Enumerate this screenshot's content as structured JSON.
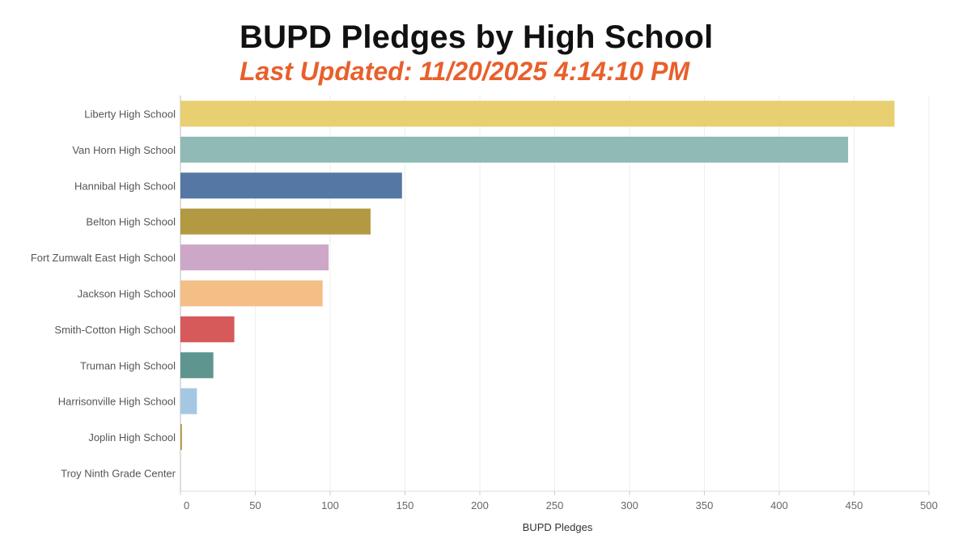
{
  "title": "BUPD Pledges by High School",
  "subtitle": "Last Updated: 11/20/2025 4:14:10 PM",
  "chart_data": {
    "type": "bar",
    "orientation": "horizontal",
    "title": "BUPD Pledges by High School",
    "subtitle": "Last Updated: 11/20/2025 4:14:10 PM",
    "xlabel": "BUPD Pledges",
    "ylabel": "",
    "xlim": [
      0,
      500
    ],
    "xticks": [
      0,
      50,
      100,
      150,
      200,
      250,
      300,
      350,
      400,
      450,
      500
    ],
    "grid": true,
    "categories": [
      "Liberty High School",
      "Van Horn High School",
      "Hannibal High School",
      "Belton High School",
      "Fort Zumwalt East High School",
      "Jackson High School",
      "Smith-Cotton High School",
      "Truman High School",
      "Harrisonville High School",
      "Joplin High School",
      "Troy Ninth Grade Center"
    ],
    "values": [
      477,
      446,
      148,
      127,
      99,
      95,
      36,
      22,
      11,
      1,
      0
    ],
    "colors": [
      "#E8CF72",
      "#8FBAB5",
      "#5577A3",
      "#B39A42",
      "#CDA7C8",
      "#F4BE87",
      "#D65A5A",
      "#5E968F",
      "#A5C8E2",
      "#B39A42",
      "#CDA7C8"
    ]
  }
}
